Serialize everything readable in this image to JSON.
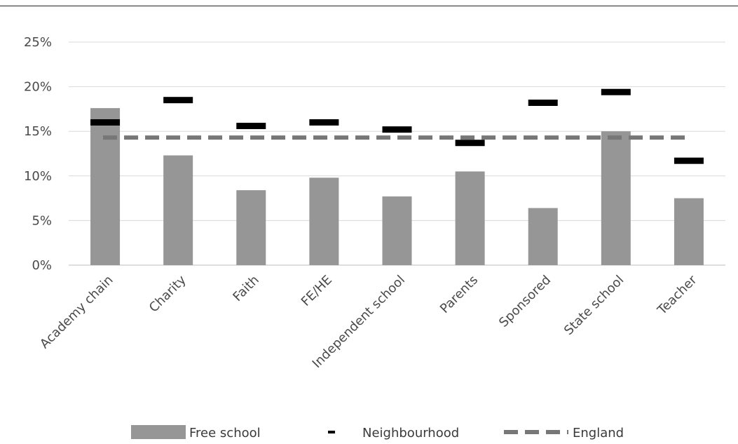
{
  "chart_data": {
    "type": "bar",
    "categories": [
      "Academy chain",
      "Charity",
      "Faith",
      "FE/HE",
      "Independent school",
      "Parents",
      "Sponsored",
      "State school",
      "Teacher"
    ],
    "series": [
      {
        "name": "Free school",
        "kind": "bar",
        "color": "#969696",
        "values": [
          17.6,
          12.3,
          8.4,
          9.8,
          7.7,
          10.5,
          6.4,
          15.0,
          7.5
        ]
      },
      {
        "name": "Neighbourhood",
        "kind": "marker",
        "color": "#000000",
        "values": [
          16.0,
          18.5,
          15.6,
          16.0,
          15.2,
          13.7,
          18.2,
          19.4,
          11.7
        ]
      },
      {
        "name": "England",
        "kind": "dashed-line",
        "color": "#777777",
        "values": [
          14.3,
          14.3,
          14.3,
          14.3,
          14.3,
          14.3,
          14.3,
          14.3,
          14.3
        ]
      }
    ],
    "yticks": [
      0,
      5,
      10,
      15,
      20,
      25
    ],
    "ytick_labels": [
      "0%",
      "5%",
      "10%",
      "15%",
      "20%",
      "25%"
    ],
    "ylim": [
      0,
      25
    ],
    "grid": true,
    "legend_position": "bottom"
  }
}
